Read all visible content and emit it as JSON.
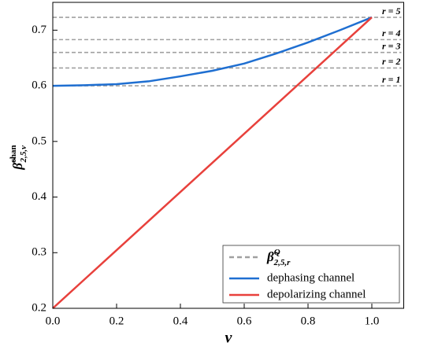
{
  "chart_data": {
    "type": "line",
    "xlabel": "ν",
    "ylabel": {
      "base": "β̃",
      "sup": "chan",
      "sub": "2,5,ν"
    },
    "xlim": [
      0,
      1.1
    ],
    "ylim": [
      0.2,
      0.75
    ],
    "xticks": [
      {
        "value": 0,
        "label": "0.0"
      },
      0.2,
      0.4,
      0.6,
      0.8,
      {
        "value": 1,
        "label": "1.0"
      }
    ],
    "yticks": [
      0.2,
      0.3,
      0.4,
      0.5,
      0.6,
      0.7
    ],
    "reference_lines": {
      "name": {
        "base": "β̃",
        "sup": "Q",
        "sub": "2,5,r"
      },
      "color": "#a0a0a0",
      "values": [
        0.6,
        0.632,
        0.66,
        0.683,
        0.723
      ],
      "labels": [
        "r = 1",
        "r = 2",
        "r = 3",
        "r = 4",
        "r = 5"
      ]
    },
    "x": [
      0,
      0.1,
      0.2,
      0.3,
      0.4,
      0.5,
      0.6,
      0.7,
      0.8,
      0.9,
      1.0
    ],
    "series": [
      {
        "name": "dephasing channel",
        "color": "#1f6fd1",
        "values": [
          0.6,
          0.601,
          0.603,
          0.608,
          0.617,
          0.627,
          0.64,
          0.658,
          0.678,
          0.7,
          0.723
        ]
      },
      {
        "name": "depolarizing channel",
        "color": "#e8413c",
        "values": [
          0.2,
          0.2523,
          0.3046,
          0.3569,
          0.4092,
          0.4615,
          0.5138,
          0.5661,
          0.6184,
          0.6707,
          0.723
        ]
      }
    ],
    "legend": "lower right"
  }
}
